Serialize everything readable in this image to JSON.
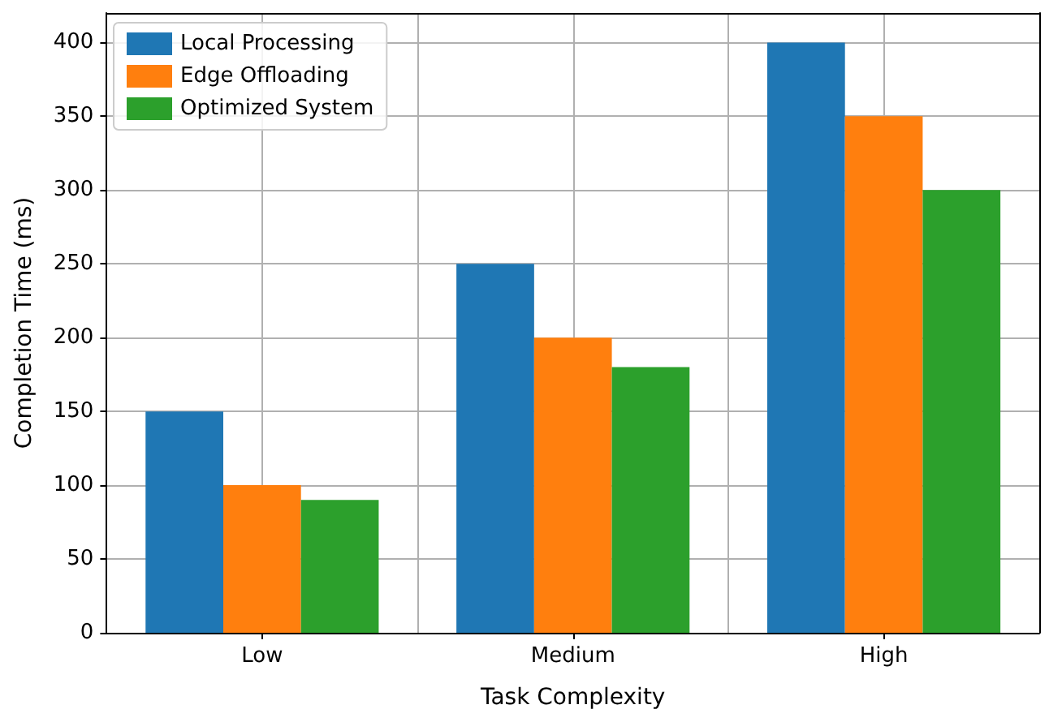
{
  "chart_data": {
    "type": "bar",
    "xlabel": "Task Complexity",
    "ylabel": "Completion Time (ms)",
    "categories": [
      "Low",
      "Medium",
      "High"
    ],
    "series": [
      {
        "name": "Local Processing",
        "color": "#1f77b4",
        "values": [
          150,
          250,
          400
        ]
      },
      {
        "name": "Edge Offloading",
        "color": "#ff7f0e",
        "values": [
          100,
          200,
          350
        ]
      },
      {
        "name": "Optimized System",
        "color": "#2ca02c",
        "values": [
          90,
          180,
          300
        ]
      }
    ],
    "ylim": [
      0,
      420
    ],
    "yticks": [
      0,
      50,
      100,
      150,
      200,
      250,
      300,
      350,
      400
    ],
    "grid": true,
    "legend": "top left"
  }
}
